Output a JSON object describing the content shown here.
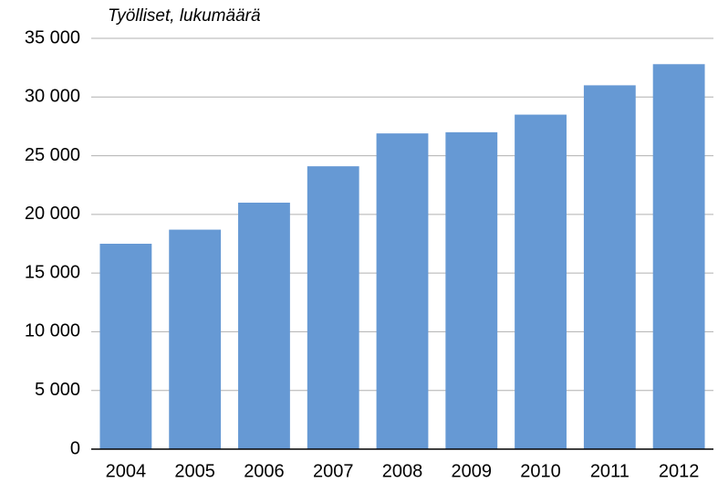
{
  "chart_data": {
    "type": "bar",
    "title": "Työlliset, lukumäärä",
    "categories": [
      "2004",
      "2005",
      "2006",
      "2007",
      "2008",
      "2009",
      "2010",
      "2011",
      "2012"
    ],
    "values": [
      17500,
      18700,
      21000,
      24100,
      26900,
      27000,
      28500,
      31000,
      32800
    ],
    "color": "#6699d4",
    "ylim": [
      0,
      35000
    ],
    "yticks": [
      0,
      {
        "value": 5000,
        "label": "5 000"
      },
      {
        "value": 10000,
        "label": "10 000"
      },
      {
        "value": 15000,
        "label": "15 000"
      },
      {
        "value": 20000,
        "label": "20 000"
      },
      {
        "value": 25000,
        "label": "25 000"
      },
      {
        "value": 30000,
        "label": "30 000"
      },
      {
        "value": 35000,
        "label": "35 000"
      }
    ],
    "grid": true
  }
}
